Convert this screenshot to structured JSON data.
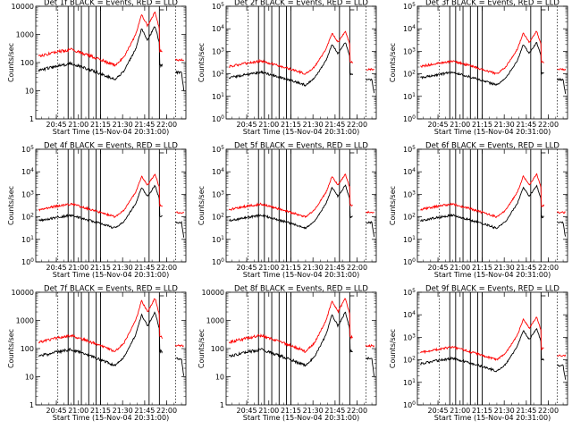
{
  "chart_data": [
    {
      "type": "line",
      "panel": "Det 1f",
      "title": "Det 1f BLACK = Events, RED = LLD",
      "xlabel": "Start Time (15-Nov-04 20:31:00)",
      "ylabel": "Counts/sec",
      "yscale": "log",
      "ylim": [
        1,
        10000
      ],
      "ytick_style": "plain",
      "yticks": [
        "1",
        "10",
        "100",
        "1000",
        "10000"
      ],
      "xticks": [
        "20:45",
        "21:00",
        "21:15",
        "21:30",
        "21:45",
        "22:00"
      ],
      "series": [
        {
          "name": "Events",
          "color": "#000000"
        },
        {
          "name": "LLD",
          "color": "#ff0000"
        }
      ]
    },
    {
      "type": "line",
      "panel": "Det 2f",
      "title": "Det 2f BLACK = Events, RED = LLD",
      "xlabel": "Start Time (15-Nov-04 20:31:00)",
      "ylabel": "Counts/sec",
      "yscale": "log",
      "ylim": [
        1,
        100000
      ],
      "ytick_style": "power",
      "yticks": [
        "10^0",
        "10^1",
        "10^2",
        "10^3",
        "10^4",
        "10^5"
      ],
      "xticks": [
        "20:45",
        "21:00",
        "21:15",
        "21:30",
        "21:45",
        "22:00"
      ],
      "series": [
        {
          "name": "Events",
          "color": "#000000"
        },
        {
          "name": "LLD",
          "color": "#ff0000"
        }
      ]
    },
    {
      "type": "line",
      "panel": "Det 3f",
      "title": "Det 3f BLACK = Events, RED = LLD",
      "xlabel": "Start Time (15-Nov-04 20:31:00)",
      "ylabel": "Counts/sec",
      "yscale": "log",
      "ylim": [
        1,
        100000
      ],
      "ytick_style": "power",
      "yticks": [
        "10^0",
        "10^1",
        "10^2",
        "10^3",
        "10^4",
        "10^5"
      ],
      "xticks": [
        "20:45",
        "21:00",
        "21:15",
        "21:30",
        "21:45",
        "22:00"
      ],
      "series": [
        {
          "name": "Events",
          "color": "#000000"
        },
        {
          "name": "LLD",
          "color": "#ff0000"
        }
      ]
    },
    {
      "type": "line",
      "panel": "Det 4f",
      "title": "Det 4f BLACK = Events, RED = LLD",
      "xlabel": "Start Time (15-Nov-04 20:31:00)",
      "ylabel": "Counts/sec",
      "yscale": "log",
      "ylim": [
        1,
        100000
      ],
      "ytick_style": "power",
      "yticks": [
        "10^0",
        "10^1",
        "10^2",
        "10^3",
        "10^4",
        "10^5"
      ],
      "xticks": [
        "20:45",
        "21:00",
        "21:15",
        "21:30",
        "21:45",
        "22:00"
      ],
      "series": [
        {
          "name": "Events",
          "color": "#000000"
        },
        {
          "name": "LLD",
          "color": "#ff0000"
        }
      ]
    },
    {
      "type": "line",
      "panel": "Det 5f",
      "title": "Det 5f BLACK = Events, RED = LLD",
      "xlabel": "Start Time (15-Nov-04 20:31:00)",
      "ylabel": "Counts/sec",
      "yscale": "log",
      "ylim": [
        1,
        100000
      ],
      "ytick_style": "power",
      "yticks": [
        "10^0",
        "10^1",
        "10^2",
        "10^3",
        "10^4",
        "10^5"
      ],
      "xticks": [
        "20:45",
        "21:00",
        "21:15",
        "21:30",
        "21:45",
        "22:00"
      ],
      "series": [
        {
          "name": "Events",
          "color": "#000000"
        },
        {
          "name": "LLD",
          "color": "#ff0000"
        }
      ]
    },
    {
      "type": "line",
      "panel": "Det 6f",
      "title": "Det 6f BLACK = Events, RED = LLD",
      "xlabel": "Start Time (15-Nov-04 20:31:00)",
      "ylabel": "Counts/sec",
      "yscale": "log",
      "ylim": [
        1,
        100000
      ],
      "ytick_style": "power",
      "yticks": [
        "10^0",
        "10^1",
        "10^2",
        "10^3",
        "10^4",
        "10^5"
      ],
      "xticks": [
        "20:45",
        "21:00",
        "21:15",
        "21:30",
        "21:45",
        "22:00"
      ],
      "series": [
        {
          "name": "Events",
          "color": "#000000"
        },
        {
          "name": "LLD",
          "color": "#ff0000"
        }
      ]
    },
    {
      "type": "line",
      "panel": "Det 7f",
      "title": "Det 7f BLACK = Events, RED = LLD",
      "xlabel": "Start Time (15-Nov-04 20:31:00)",
      "ylabel": "Counts/sec",
      "yscale": "log",
      "ylim": [
        1,
        10000
      ],
      "ytick_style": "plain",
      "yticks": [
        "1",
        "10",
        "100",
        "1000",
        "10000"
      ],
      "xticks": [
        "20:45",
        "21:00",
        "21:15",
        "21:30",
        "21:45",
        "22:00"
      ],
      "series": [
        {
          "name": "Events",
          "color": "#000000"
        },
        {
          "name": "LLD",
          "color": "#ff0000"
        }
      ]
    },
    {
      "type": "line",
      "panel": "Det 8f",
      "title": "Det 8f BLACK = Events, RED = LLD",
      "xlabel": "Start Time (15-Nov-04 20:31:00)",
      "ylabel": "Counts/sec",
      "yscale": "log",
      "ylim": [
        1,
        10000
      ],
      "ytick_style": "plain",
      "yticks": [
        "1",
        "10",
        "100",
        "1000",
        "10000"
      ],
      "xticks": [
        "20:45",
        "21:00",
        "21:15",
        "21:30",
        "21:45",
        "22:00"
      ],
      "series": [
        {
          "name": "Events",
          "color": "#000000"
        },
        {
          "name": "LLD",
          "color": "#ff0000"
        }
      ]
    },
    {
      "type": "line",
      "panel": "Det 9f",
      "title": "Det 9f BLACK = Events, RED = LLD",
      "xlabel": "Start Time (15-Nov-04 20:31:00)",
      "ylabel": "Counts/sec",
      "yscale": "log",
      "ylim": [
        1,
        100000
      ],
      "ytick_style": "power",
      "yticks": [
        "10^0",
        "10^1",
        "10^2",
        "10^3",
        "10^4",
        "10^5"
      ],
      "xticks": [
        "20:45",
        "21:00",
        "21:15",
        "21:30",
        "21:45",
        "22:00"
      ],
      "series": [
        {
          "name": "Events",
          "color": "#000000"
        },
        {
          "name": "LLD",
          "color": "#ff0000"
        }
      ]
    }
  ]
}
